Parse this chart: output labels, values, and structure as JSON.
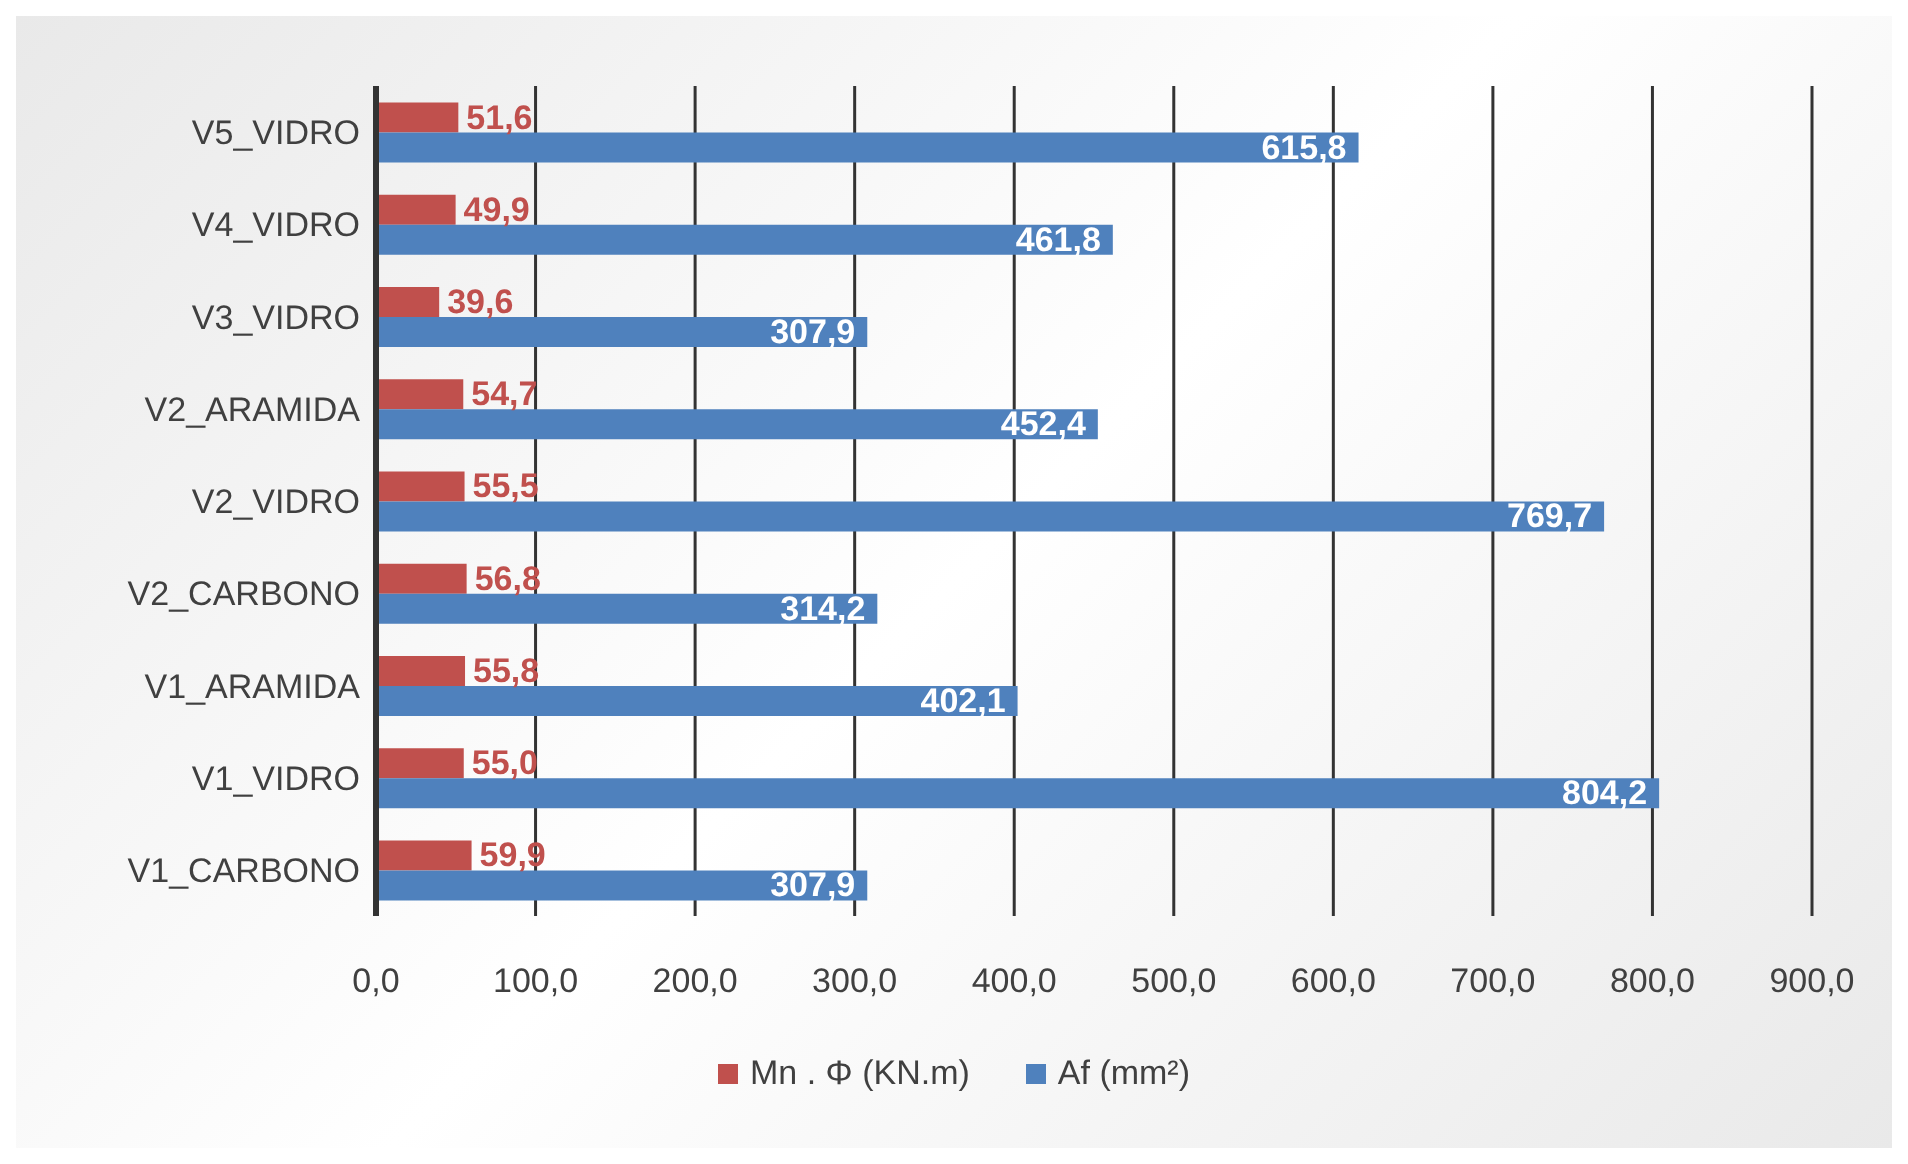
{
  "chart_data": {
    "type": "bar",
    "orientation": "horizontal",
    "categories": [
      "V5_VIDRO",
      "V4_VIDRO",
      "V3_VIDRO",
      "V2_ARAMIDA",
      "V2_VIDRO",
      "V2_CARBONO",
      "V1_ARAMIDA",
      "V1_VIDRO",
      "V1_CARBONO"
    ],
    "series": [
      {
        "name": "Mn . Φ (KN.m)",
        "color": "#c0504d",
        "values": [
          51.6,
          49.9,
          39.6,
          54.7,
          55.5,
          56.8,
          55.8,
          55.0,
          59.9
        ],
        "value_labels": [
          "51,6",
          "49,9",
          "39,6",
          "54,7",
          "55,5",
          "56,8",
          "55,8",
          "55,0",
          "59,9"
        ]
      },
      {
        "name": "Af (mm²)",
        "color": "#4f81bd",
        "values": [
          615.8,
          461.8,
          307.9,
          452.4,
          769.7,
          314.2,
          402.1,
          804.2,
          307.9
        ],
        "value_labels": [
          "615,8",
          "461,8",
          "307,9",
          "452,4",
          "769,7",
          "314,2",
          "402,1",
          "804,2",
          "307,9"
        ]
      }
    ],
    "xlim": [
      0,
      900
    ],
    "xticks": [
      {
        "value": 0,
        "label": "0,0"
      },
      {
        "value": 100,
        "label": "100,0"
      },
      {
        "value": 200,
        "label": "200,0"
      },
      {
        "value": 300,
        "label": "300,0"
      },
      {
        "value": 400,
        "label": "400,0"
      },
      {
        "value": 500,
        "label": "500,0"
      },
      {
        "value": 600,
        "label": "600,0"
      },
      {
        "value": 700,
        "label": "700,0"
      },
      {
        "value": 800,
        "label": "800,0"
      },
      {
        "value": 900,
        "label": "900,0"
      }
    ],
    "grid": "x",
    "legend": "bottom"
  }
}
